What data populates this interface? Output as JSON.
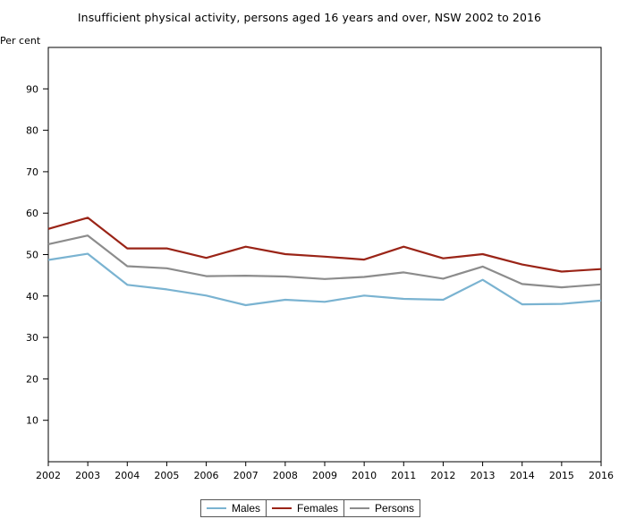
{
  "chart_data": {
    "type": "line",
    "title": "Insufficient physical activity, persons aged 16 years and over, NSW  2002 to 2016",
    "ylabel": "Per cent",
    "xlabel": "",
    "x": [
      "2002",
      "2003",
      "2004",
      "2005",
      "2006",
      "2007",
      "2008",
      "2009",
      "2010",
      "2011",
      "2012",
      "2013",
      "2014",
      "2015",
      "2016"
    ],
    "ylim": [
      0,
      100
    ],
    "yticks": [
      10,
      20,
      30,
      40,
      50,
      60,
      70,
      80,
      90
    ],
    "grid": false,
    "legend_position": "bottom",
    "series": [
      {
        "name": "Males",
        "color": "#7ab3d1",
        "values": [
          48.7,
          50.2,
          42.7,
          41.6,
          40.1,
          37.8,
          39.1,
          38.6,
          40.1,
          39.3,
          39.1,
          43.9,
          38.0,
          38.1,
          38.9
        ]
      },
      {
        "name": "Females",
        "color": "#9a2417",
        "values": [
          56.2,
          58.9,
          51.5,
          51.5,
          49.2,
          51.9,
          50.1,
          49.5,
          48.8,
          51.9,
          49.1,
          50.1,
          47.6,
          45.9,
          46.5
        ]
      },
      {
        "name": "Persons",
        "color": "#8c8c8c",
        "values": [
          52.5,
          54.6,
          47.2,
          46.7,
          44.8,
          44.9,
          44.7,
          44.1,
          44.6,
          45.7,
          44.2,
          47.1,
          42.9,
          42.1,
          42.8
        ]
      }
    ]
  }
}
